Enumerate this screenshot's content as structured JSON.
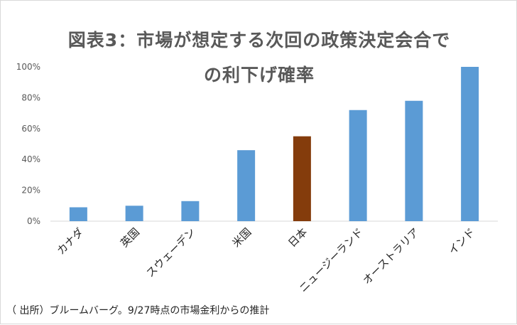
{
  "chart_data": {
    "type": "bar",
    "title_lines": [
      "図表3：市場が想定する次回の政策決定会合で",
      "の利下げ確率"
    ],
    "categories": [
      "カナダ",
      "英国",
      "スウェーデン",
      "米国",
      "日本",
      "ニュージーランド",
      "オーストラリア",
      "インド"
    ],
    "values": [
      9,
      10,
      13,
      46,
      55,
      72,
      78,
      100
    ],
    "highlight_index": 4,
    "bar_color": "#5b9bd5",
    "highlight_color": "#843c0c",
    "ylim": [
      0,
      100
    ],
    "yticks": [
      "0%",
      "20%",
      "40%",
      "60%",
      "80%",
      "100%"
    ],
    "xlabel": "",
    "ylabel": "",
    "grid": false,
    "legend": "none"
  },
  "source_note": "（ 出所）ブルームバーグ。9/27時点の市場金利からの推計"
}
